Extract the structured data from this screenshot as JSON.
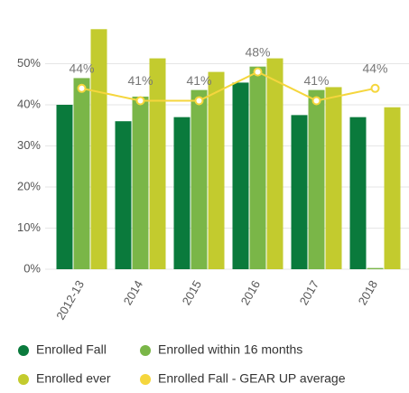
{
  "chart_data": {
    "type": "bar",
    "categories": [
      "2012-13",
      "2014",
      "2015",
      "2016",
      "2017",
      "2018"
    ],
    "series": [
      {
        "name": "Enrolled Fall",
        "color": "#0a7a3c",
        "values": [
          40,
          36,
          37,
          45.4,
          37.5,
          37
        ]
      },
      {
        "name": "Enrolled within 16 months",
        "color": "#7ab648",
        "values": [
          46.5,
          42,
          43.6,
          49.3,
          43.6,
          0.3
        ]
      },
      {
        "name": "Enrolled ever",
        "color": "#c3cb2e",
        "values": [
          58.4,
          51.3,
          48,
          51.3,
          44.3,
          39.4
        ]
      },
      {
        "name": "Enrolled Fall - GEAR UP average",
        "color": "#f5d63d",
        "type": "line",
        "values": [
          44,
          41,
          41,
          48,
          41,
          44
        ],
        "value_labels": [
          "44%",
          "41%",
          "41%",
          "48%",
          "41%",
          "44%"
        ]
      }
    ],
    "ylim": [
      0,
      60
    ],
    "yticks": [
      {
        "value": 0,
        "label": "0%"
      },
      {
        "value": 10,
        "label": "10%"
      },
      {
        "value": 20,
        "label": "20%"
      },
      {
        "value": 30,
        "label": "30%"
      },
      {
        "value": 40,
        "label": "40%"
      },
      {
        "value": 50,
        "label": "50%"
      }
    ],
    "grid": true,
    "legend": "bottom"
  }
}
